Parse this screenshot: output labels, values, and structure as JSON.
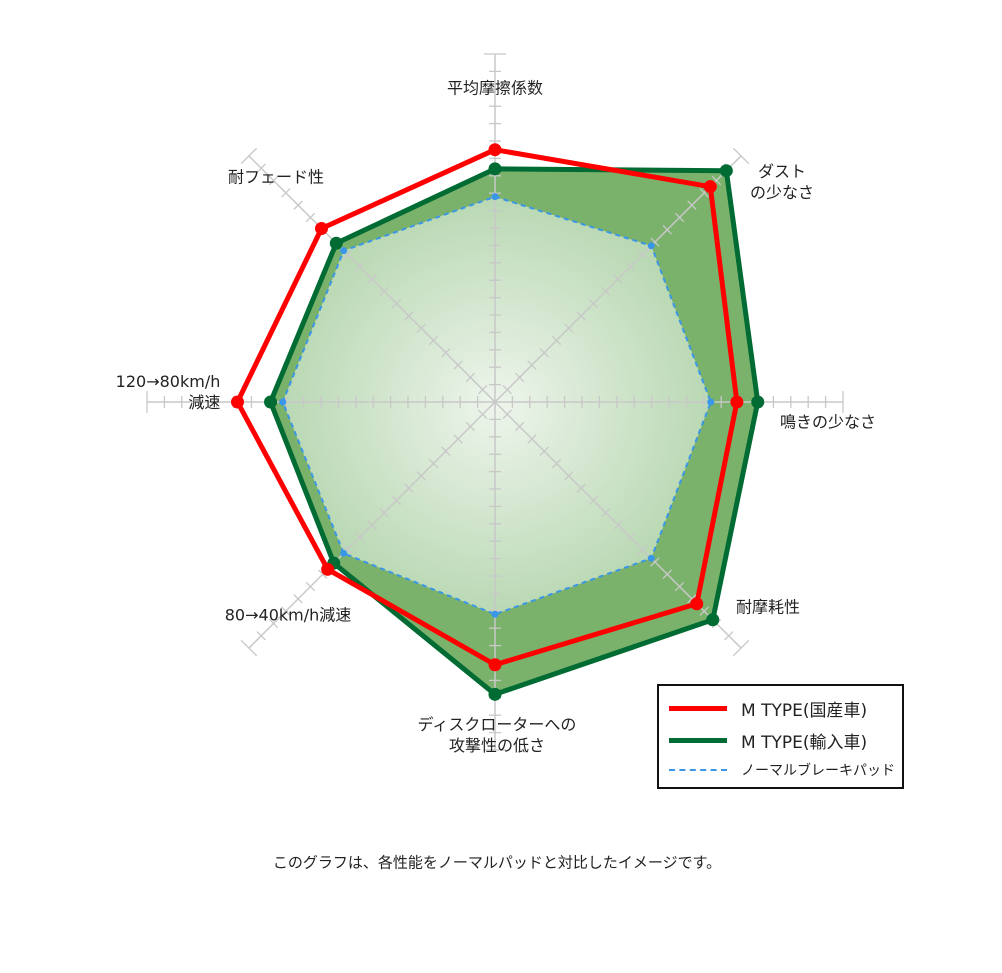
{
  "chart_data": {
    "type": "radar",
    "axes": [
      "平均摩擦係数",
      "ダスト\nの少なさ",
      "鳴きの少なさ",
      "耐摩耗性",
      "ディスクローターへの\n攻撃性の低さ",
      "80→40km/h減速",
      "120→80km/h\n減速",
      "耐フェード性"
    ],
    "rlim": [
      0,
      20
    ],
    "grid": true,
    "legend_placement": "bottom-right",
    "series": [
      {
        "name": "M TYPE(国産車)",
        "color": "#ff0000",
        "style": "solid",
        "values": [
          14.5,
          17.5,
          13.9,
          16.4,
          15.1,
          13.6,
          14.8,
          14.1
        ]
      },
      {
        "name": "M TYPE(輸入車)",
        "color": "#006b33",
        "style": "solid",
        "fill": "#7ab26c",
        "values": [
          13.4,
          18.8,
          15.1,
          17.7,
          16.8,
          13.1,
          12.9,
          12.9
        ]
      },
      {
        "name": "ノーマルブレーキパッド",
        "color": "#3a96e6",
        "style": "dashed",
        "values": [
          11.8,
          12.7,
          12.4,
          12.7,
          12.2,
          12.3,
          12.2,
          12.3
        ]
      }
    ]
  },
  "caption": "このグラフは、各性能をノーマルパッドと対比したイメージです。"
}
